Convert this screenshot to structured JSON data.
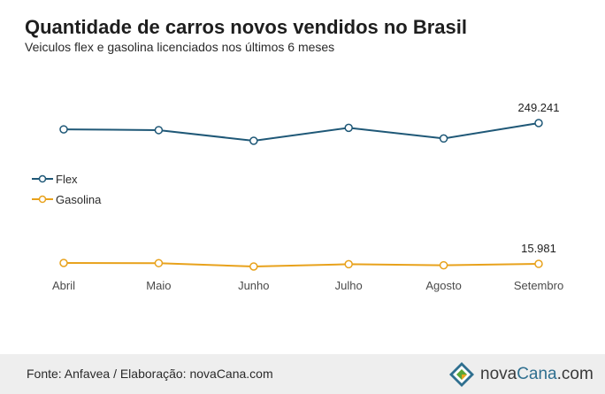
{
  "header": {
    "title": "Quantidade de carros novos vendidos no Brasil",
    "subtitle": "Veiculos flex e gasolina licenciados nos últimos 6 meses"
  },
  "footer": {
    "source": "Fonte: Anfavea / Elaboração: novaCana.com",
    "logo_text_a": "nova",
    "logo_text_b": "Cana",
    "logo_text_c": ".com"
  },
  "colors": {
    "flex": "#1f5877",
    "gasolina": "#e8a21c",
    "marker_fill": "#ffffff",
    "axis_text": "#4a4a4a"
  },
  "chart_data": {
    "type": "line",
    "title": "Quantidade de carros novos vendidos no Brasil",
    "subtitle": "Veiculos flex e gasolina licenciados nos últimos 6 meses",
    "categories": [
      "Abril",
      "Maio",
      "Junho",
      "Julho",
      "Agosto",
      "Setembro"
    ],
    "series": [
      {
        "name": "Flex",
        "values": [
          241000,
          240000,
          226000,
          243000,
          229000,
          249241
        ],
        "end_label": "249.241"
      },
      {
        "name": "Gasolina",
        "values": [
          16500,
          16400,
          14500,
          15800,
          15200,
          15981
        ],
        "end_label": "15.981"
      }
    ],
    "ylim": [
      0,
      280000
    ],
    "grid": false,
    "legend": "left"
  }
}
